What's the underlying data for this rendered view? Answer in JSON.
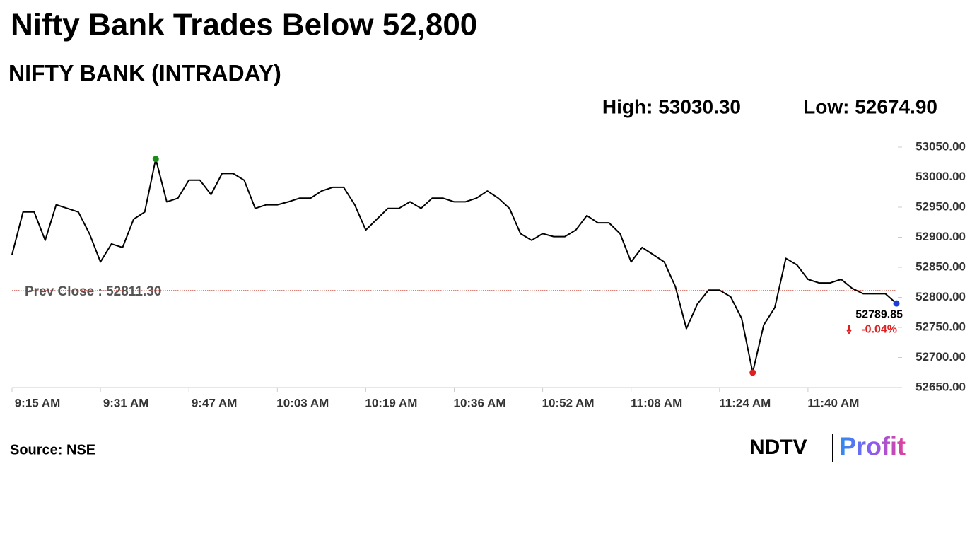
{
  "chart_data": {
    "type": "line",
    "title": "Nifty Bank Trades Below 52,800",
    "subtitle": "NIFTY BANK (INTRADAY)",
    "annotations": [
      "High: 53030.30",
      "Low: 52674.90"
    ],
    "source": "Source: NSE",
    "logo": [
      "NDTV",
      "Profit"
    ],
    "categories": [
      "9:15 AM",
      null,
      null,
      null,
      null,
      null,
      null,
      null,
      "9:31 AM",
      null,
      null,
      null,
      null,
      null,
      null,
      null,
      "9:47 AM",
      null,
      null,
      null,
      null,
      null,
      null,
      null,
      "10:03 AM",
      null,
      null,
      null,
      null,
      null,
      null,
      null,
      "10:19 AM",
      null,
      null,
      null,
      null,
      null,
      null,
      null,
      "10:36 AM",
      null,
      null,
      null,
      null,
      null,
      null,
      null,
      "10:52 AM",
      null,
      null,
      null,
      null,
      null,
      null,
      null,
      "11:08 AM",
      null,
      null,
      null,
      null,
      null,
      null,
      null,
      "11:24 AM",
      null,
      null,
      null,
      null,
      null,
      null,
      null,
      "11:40 AM",
      null,
      null,
      null,
      null,
      null,
      null,
      null,
      null
    ],
    "series": [
      {
        "name": "NIFTY BANK",
        "color": "#000000",
        "values": [
          52871,
          52942,
          52942,
          52895,
          52954,
          52948,
          52942,
          52906,
          52859,
          52889,
          52883,
          52930,
          52942,
          53030.3,
          52959,
          52965,
          52995,
          52995,
          52971,
          53006,
          53006,
          52995,
          52948,
          52954,
          52954,
          52959,
          52965,
          52965,
          52977,
          52983,
          52983,
          52954,
          52912,
          52930,
          52948,
          52948,
          52959,
          52948,
          52965,
          52965,
          52959,
          52959,
          52965,
          52977,
          52965,
          52948,
          52906,
          52895,
          52906,
          52901,
          52901,
          52912,
          52936,
          52924,
          52924,
          52906,
          52859,
          52883,
          52871,
          52859,
          52818,
          52748,
          52789,
          52812,
          52812,
          52801,
          52765,
          52674.9,
          52754,
          52783,
          52865,
          52854,
          52830,
          52824,
          52824,
          52830,
          52815,
          52806,
          52806,
          52806,
          52789.85
        ]
      }
    ],
    "high_index": 13,
    "low_index": 67,
    "high_color": "#1a8a1a",
    "low_color": "#e02020",
    "last_color": "#1a3fd8",
    "reference_line": {
      "value": 52811.3,
      "label": "Prev Close : 52811.30",
      "color": "#c0392b"
    },
    "last_change": {
      "value": -0.04,
      "label": "-0.04%",
      "color": "#e02020"
    },
    "ylim": [
      52650,
      53050
    ],
    "yticks": [
      {
        "value": 52650,
        "label": "52650.00"
      },
      {
        "value": 52700,
        "label": "52700.00"
      },
      {
        "value": 52750,
        "label": "52750.00"
      },
      {
        "value": 52800,
        "label": "52800.00"
      },
      {
        "value": 52850,
        "label": "52850.00"
      },
      {
        "value": 52900,
        "label": "52900.00"
      },
      {
        "value": 52950,
        "label": "52950.00"
      },
      {
        "value": 53000,
        "label": "53000.00"
      },
      {
        "value": 53050,
        "label": "53050.00"
      }
    ]
  }
}
